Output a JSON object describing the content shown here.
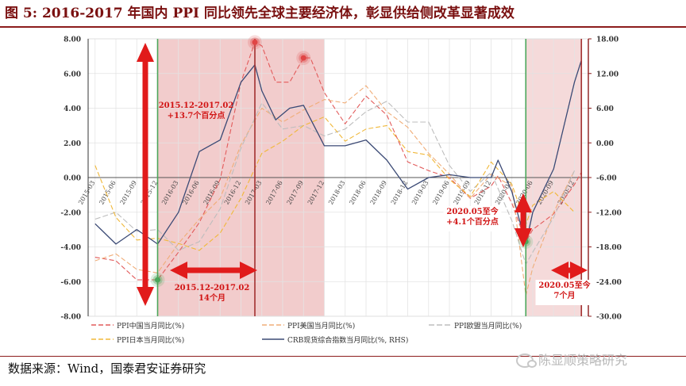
{
  "header": {
    "title": "图 5:    2016-2017 年国内 PPI 同比领先全球主要经济体，彰显供给侧改革显著成效"
  },
  "footer": {
    "source": "数据来源：Wind，国泰君安证券研究",
    "watermark": "陈显顺策略研究",
    "watermark_icon": "wechat-icon"
  },
  "chart_data": {
    "type": "line",
    "left_axis": {
      "min": -8,
      "max": 8,
      "step": 2,
      "tick_labels": [
        "8.00",
        "6.00",
        "4.00",
        "2.00",
        "0.00",
        "-2.00",
        "-4.00",
        "-6.00",
        "-8.00"
      ]
    },
    "right_axis": {
      "min": -30,
      "max": 18,
      "step": 6,
      "label": "RHS",
      "tick_labels": [
        "18.00",
        "12.00",
        "6.00",
        "0.00",
        "-6.00",
        "-12.00",
        "-18.00",
        "-24.00",
        "-30.00"
      ],
      "color": "#8c1c1c"
    },
    "x_categories": [
      "2015-03",
      "2015-06",
      "2015-09",
      "2015-12",
      "2016-03",
      "2016-06",
      "2016-09",
      "2016-12",
      "2017-03",
      "2017-06",
      "2017-09",
      "2017-12",
      "2018-03",
      "2018-06",
      "2018-09",
      "2018-12",
      "2019-03",
      "2019-06",
      "2019-09",
      "2019-12",
      "2020-03",
      "2020-06",
      "2020-09",
      "2020-12"
    ],
    "x_range": [
      "2015-02",
      "2021-02"
    ],
    "grid": true,
    "legend_position": "bottom",
    "series": [
      {
        "name": "PPI中国当月同比(%)",
        "axis": "left",
        "color": "#e25b5b",
        "dash": "6,3",
        "width": 1.1,
        "x": [
          "2015-03",
          "2015-06",
          "2015-09",
          "2015-12",
          "2016-03",
          "2016-06",
          "2016-09",
          "2016-12",
          "2017-02",
          "2017-03",
          "2017-05",
          "2017-07",
          "2017-09",
          "2017-10",
          "2017-12",
          "2018-03",
          "2018-06",
          "2018-09",
          "2018-12",
          "2019-03",
          "2019-06",
          "2019-09",
          "2019-12",
          "2020-01",
          "2020-03",
          "2020-05",
          "2020-06",
          "2020-09",
          "2020-12",
          "2021-01"
        ],
        "y": [
          -4.6,
          -4.8,
          -5.9,
          -5.9,
          -4.3,
          -2.6,
          -0.1,
          5.5,
          7.8,
          7.6,
          5.5,
          5.5,
          6.9,
          6.9,
          4.9,
          3.1,
          4.7,
          3.6,
          0.9,
          0.4,
          0.0,
          -1.2,
          -0.5,
          0.1,
          -1.5,
          -3.7,
          -3.0,
          -2.1,
          -0.4,
          0.3
        ]
      },
      {
        "name": "PPI美国当月同比(%)",
        "axis": "left",
        "color": "#f0ad78",
        "dash": "6,3",
        "width": 1.1,
        "x": [
          "2015-03",
          "2015-06",
          "2015-09",
          "2015-12",
          "2016-03",
          "2016-06",
          "2016-09",
          "2016-12",
          "2017-03",
          "2017-06",
          "2017-09",
          "2017-12",
          "2018-03",
          "2018-06",
          "2018-09",
          "2018-12",
          "2019-03",
          "2019-06",
          "2019-09",
          "2019-12",
          "2020-03",
          "2020-05",
          "2020-06",
          "2020-09",
          "2020-12"
        ],
        "y": [
          -4.8,
          -4.4,
          -5.3,
          -5.5,
          -3.8,
          -2.4,
          -1.2,
          1.9,
          4.0,
          3.2,
          3.9,
          4.5,
          4.3,
          5.3,
          3.8,
          2.9,
          1.4,
          0.2,
          -1.2,
          0.2,
          -0.5,
          -6.8,
          -5.2,
          -2.0,
          0.4
        ]
      },
      {
        "name": "PPI欧盟当月同比(%)",
        "axis": "left",
        "color": "#bdbdbd",
        "dash": "7,3",
        "width": 1.1,
        "x": [
          "2015-03",
          "2015-06",
          "2015-09",
          "2015-12",
          "2016-03",
          "2016-06",
          "2016-09",
          "2016-12",
          "2017-03",
          "2017-06",
          "2017-09",
          "2017-12",
          "2018-03",
          "2018-06",
          "2018-09",
          "2018-12",
          "2019-03",
          "2019-06",
          "2019-09",
          "2019-12",
          "2020-03",
          "2020-05",
          "2020-06",
          "2020-09",
          "2020-12"
        ],
        "y": [
          -2.4,
          -2.0,
          -3.1,
          -3.0,
          -4.2,
          -3.7,
          -1.8,
          1.7,
          4.3,
          2.8,
          3.0,
          2.4,
          2.8,
          3.8,
          4.4,
          3.2,
          3.2,
          0.7,
          -0.8,
          0.3,
          -2.5,
          -5.0,
          -4.3,
          -2.3,
          0.4
        ]
      },
      {
        "name": "PPI日本当月同比(%)",
        "axis": "left",
        "color": "#f0b83a",
        "dash": "6,3",
        "width": 1.1,
        "x": [
          "2015-03",
          "2015-06",
          "2015-09",
          "2015-12",
          "2016-03",
          "2016-06",
          "2016-09",
          "2016-12",
          "2017-03",
          "2017-06",
          "2017-09",
          "2017-12",
          "2018-03",
          "2018-06",
          "2018-09",
          "2018-12",
          "2019-03",
          "2019-06",
          "2019-09",
          "2019-12",
          "2020-03",
          "2020-05",
          "2020-06",
          "2020-09",
          "2020-12"
        ],
        "y": [
          0.7,
          -2.3,
          -3.6,
          -3.5,
          -3.8,
          -4.2,
          -3.2,
          -1.2,
          1.4,
          2.1,
          3.0,
          3.5,
          2.1,
          2.8,
          3.0,
          1.5,
          1.3,
          -0.1,
          -1.1,
          0.9,
          -0.4,
          -2.7,
          -1.6,
          -0.8,
          -2.0
        ]
      },
      {
        "name": "CRB现货综合指数当月同比(%, RHS)",
        "axis": "right",
        "color": "#3b4a75",
        "dash": "",
        "width": 1.3,
        "x": [
          "2015-03",
          "2015-06",
          "2015-09",
          "2015-12",
          "2016-03",
          "2016-06",
          "2016-09",
          "2016-12",
          "2017-02",
          "2017-03",
          "2017-05",
          "2017-07",
          "2017-09",
          "2017-12",
          "2018-03",
          "2018-06",
          "2018-09",
          "2018-12",
          "2019-03",
          "2019-06",
          "2019-09",
          "2019-12",
          "2020-01",
          "2020-03",
          "2020-05",
          "2020-06",
          "2020-09",
          "2020-12",
          "2021-01"
        ],
        "y": [
          -14.0,
          -17.5,
          -15.0,
          -17.5,
          -12.0,
          -1.5,
          0.5,
          10.5,
          13.5,
          9.0,
          4.0,
          6.0,
          6.5,
          -0.5,
          -0.5,
          0.5,
          -3.0,
          -8.0,
          -6.0,
          -5.5,
          -6.0,
          -6.0,
          -3.0,
          -8.5,
          -17.5,
          -12.0,
          -4.5,
          10.5,
          14.3
        ]
      }
    ],
    "shaded_periods": [
      {
        "start": "2015-12",
        "end": "2017-12",
        "color": "#f1c7c7"
      },
      {
        "start": "2020-05",
        "end": "2021-01",
        "color": "#f4d6d6"
      }
    ],
    "vertical_lines": [
      {
        "at": "2015-12",
        "color": "#4ca65a"
      },
      {
        "at": "2017-02",
        "color": "#a23030"
      },
      {
        "at": "2020-05",
        "color": "#4ca65a"
      },
      {
        "at": "2021-01",
        "color": "#a23030"
      }
    ],
    "markers": [
      {
        "at": "2015-12",
        "y": -5.9,
        "color": "#4ca65a"
      },
      {
        "at": "2017-02",
        "y": 7.8,
        "color": "#e04545"
      },
      {
        "at": "2017-09",
        "y": 6.9,
        "color": "#e04545"
      },
      {
        "at": "2020-05",
        "y": -3.7,
        "color": "#4ca65a"
      }
    ],
    "annotations": [
      {
        "id": "china_peak_box",
        "text": [
          "2015.12-2017.02",
          "+13.7个百分点"
        ]
      },
      {
        "id": "china_duration_box",
        "text": [
          "2015.12-2017.02",
          "14个月"
        ]
      },
      {
        "id": "recent_rise_box",
        "text": [
          "2020.05至今",
          "+4.1个百分点"
        ]
      },
      {
        "id": "recent_duration_box",
        "text": [
          "2020.05至今",
          "7个月"
        ]
      }
    ]
  }
}
